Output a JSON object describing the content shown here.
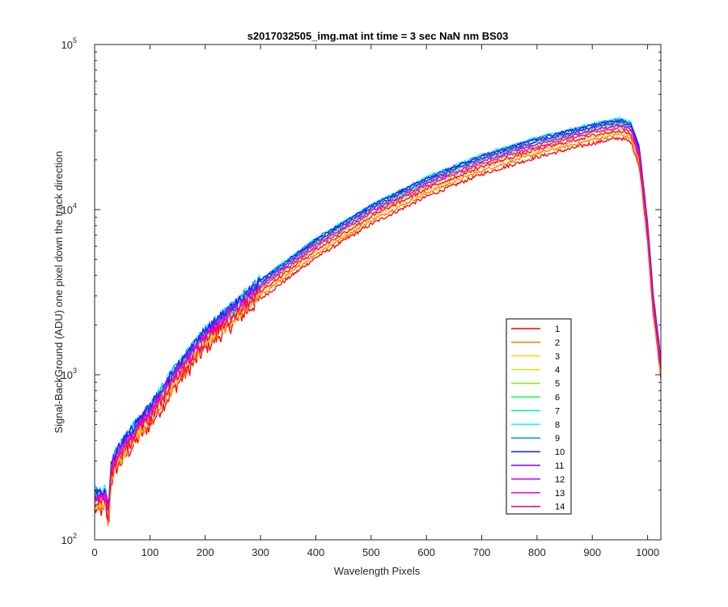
{
  "chart_data": {
    "type": "line",
    "title": "s2017032505_img.mat int time = 3 sec  NaN nm BS03",
    "xlabel": "Wavelength Pixels",
    "ylabel": "Signal-BackGround (ADU) one pixel down the track direction",
    "xlim": [
      0,
      1024
    ],
    "ylim": [
      100,
      100000
    ],
    "yscale": "log",
    "x_ticks": [
      "0",
      "100",
      "200",
      "300",
      "400",
      "500",
      "600",
      "700",
      "800",
      "900",
      "1000"
    ],
    "y_ticks": [
      {
        "base": "10",
        "exp": "2"
      },
      {
        "base": "10",
        "exp": "3"
      },
      {
        "base": "10",
        "exp": "4"
      },
      {
        "base": "10",
        "exp": "5"
      }
    ],
    "grid": false,
    "legend_position": "lower-right",
    "x": [
      0,
      10,
      20,
      25,
      30,
      40,
      60,
      80,
      100,
      150,
      200,
      300,
      400,
      500,
      600,
      700,
      800,
      900,
      950,
      970,
      985,
      1000,
      1010,
      1024
    ],
    "base_values": [
      190,
      185,
      195,
      150,
      280,
      340,
      420,
      520,
      620,
      1100,
      1800,
      3600,
      6400,
      10200,
      15000,
      20500,
      26000,
      31500,
      34000,
      32000,
      23000,
      8000,
      3000,
      1200
    ],
    "series": [
      {
        "name": "1",
        "color": "#ff0000",
        "scale": 0.8,
        "noise": 0.1
      },
      {
        "name": "2",
        "color": "#ff7a00",
        "scale": 0.84,
        "noise": 0.09
      },
      {
        "name": "3",
        "color": "#ffd500",
        "scale": 0.87,
        "noise": 0.08
      },
      {
        "name": "4",
        "color": "#c8f000",
        "scale": 0.92,
        "noise": 0.07
      },
      {
        "name": "5",
        "color": "#7cf000",
        "scale": 0.95,
        "noise": 0.07
      },
      {
        "name": "6",
        "color": "#00ff40",
        "scale": 0.98,
        "noise": 0.07
      },
      {
        "name": "7",
        "color": "#00f0a0",
        "scale": 1.0,
        "noise": 0.07
      },
      {
        "name": "8",
        "color": "#00ffff",
        "scale": 1.05,
        "noise": 0.07
      },
      {
        "name": "9",
        "color": "#0090ff",
        "scale": 1.04,
        "noise": 0.07
      },
      {
        "name": "10",
        "color": "#0020ff",
        "scale": 1.03,
        "noise": 0.07
      },
      {
        "name": "11",
        "color": "#7a00ff",
        "scale": 1.0,
        "noise": 0.07
      },
      {
        "name": "12",
        "color": "#c000ff",
        "scale": 0.96,
        "noise": 0.07
      },
      {
        "name": "13",
        "color": "#ff00d0",
        "scale": 0.93,
        "noise": 0.08
      },
      {
        "name": "14",
        "color": "#ff0050",
        "scale": 0.89,
        "noise": 0.09
      }
    ]
  }
}
